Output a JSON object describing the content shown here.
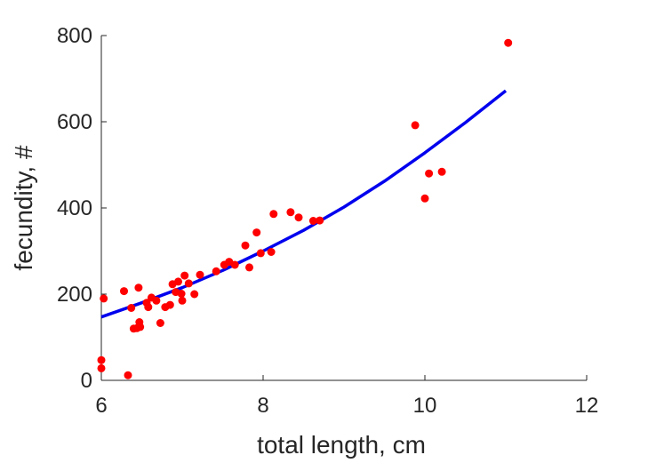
{
  "chart_data": {
    "type": "scatter",
    "xlabel": "total length, cm",
    "ylabel": "fecundity, #",
    "xlim": [
      6,
      12
    ],
    "ylim": [
      0,
      800
    ],
    "xticks": [
      6,
      8,
      10,
      12
    ],
    "yticks": [
      0,
      200,
      400,
      600,
      800
    ],
    "grid": false,
    "points_color": "#ff0000",
    "fit_color": "#0000ee",
    "points": [
      [
        6.0,
        47
      ],
      [
        6.0,
        28
      ],
      [
        6.03,
        190
      ],
      [
        6.33,
        12
      ],
      [
        6.28,
        207
      ],
      [
        6.37,
        168
      ],
      [
        6.4,
        120
      ],
      [
        6.44,
        121
      ],
      [
        6.46,
        215
      ],
      [
        6.47,
        135
      ],
      [
        6.48,
        124
      ],
      [
        6.56,
        180
      ],
      [
        6.58,
        170
      ],
      [
        6.62,
        192
      ],
      [
        6.68,
        185
      ],
      [
        6.73,
        133
      ],
      [
        6.79,
        170
      ],
      [
        6.85,
        175
      ],
      [
        6.88,
        223
      ],
      [
        6.92,
        205
      ],
      [
        6.95,
        229
      ],
      [
        6.99,
        201
      ],
      [
        7.0,
        185
      ],
      [
        7.03,
        243
      ],
      [
        7.08,
        225
      ],
      [
        7.15,
        200
      ],
      [
        7.22,
        245
      ],
      [
        7.42,
        253
      ],
      [
        7.52,
        268
      ],
      [
        7.58,
        275
      ],
      [
        7.65,
        268
      ],
      [
        7.78,
        313
      ],
      [
        7.83,
        262
      ],
      [
        7.92,
        343
      ],
      [
        7.97,
        295
      ],
      [
        8.1,
        298
      ],
      [
        8.13,
        386
      ],
      [
        8.34,
        390
      ],
      [
        8.44,
        378
      ],
      [
        8.62,
        370
      ],
      [
        8.7,
        371
      ],
      [
        9.88,
        592
      ],
      [
        10.0,
        422
      ],
      [
        10.05,
        480
      ],
      [
        10.21,
        484
      ],
      [
        11.03,
        783
      ]
    ],
    "fit_curve": {
      "x": [
        6.0,
        6.5,
        7.0,
        7.5,
        8.0,
        8.5,
        9.0,
        9.5,
        10.0,
        10.5,
        11.0
      ],
      "y": [
        147,
        180,
        215,
        255,
        300,
        348,
        402,
        462,
        528,
        598,
        672
      ]
    }
  }
}
